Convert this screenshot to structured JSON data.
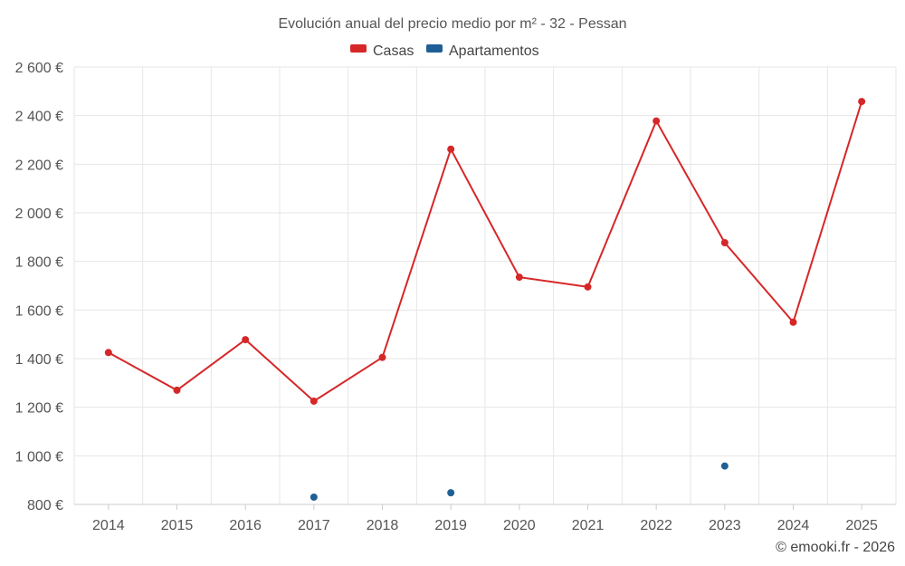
{
  "chart_data": {
    "type": "line",
    "title": "Evolución anual del precio medio por m² - 32 - Pessan",
    "categories": [
      "2014",
      "2015",
      "2016",
      "2017",
      "2018",
      "2019",
      "2020",
      "2021",
      "2022",
      "2023",
      "2024",
      "2025"
    ],
    "y_ticks": [
      800,
      1000,
      1200,
      1400,
      1600,
      1800,
      2000,
      2200,
      2400,
      2600
    ],
    "y_tick_labels": [
      "800 €",
      "1 000 €",
      "1 200 €",
      "1 400 €",
      "1 600 €",
      "1 800 €",
      "2 000 €",
      "2 200 €",
      "2 400 €",
      "2 600 €"
    ],
    "ylim": [
      800,
      2600
    ],
    "xlabel": "",
    "ylabel": "",
    "grid": true,
    "legend_position": "top-center",
    "series": [
      {
        "name": "Casas",
        "color": "#d62728",
        "values": [
          1425,
          1270,
          1478,
          1225,
          1405,
          2262,
          1735,
          1695,
          2378,
          1877,
          1550,
          2458
        ]
      },
      {
        "name": "Apartamentos",
        "color": "#1f5f96",
        "values": [
          null,
          null,
          null,
          830,
          null,
          848,
          null,
          null,
          null,
          958,
          null,
          null
        ]
      }
    ],
    "credit": "© emooki.fr - 2026"
  }
}
